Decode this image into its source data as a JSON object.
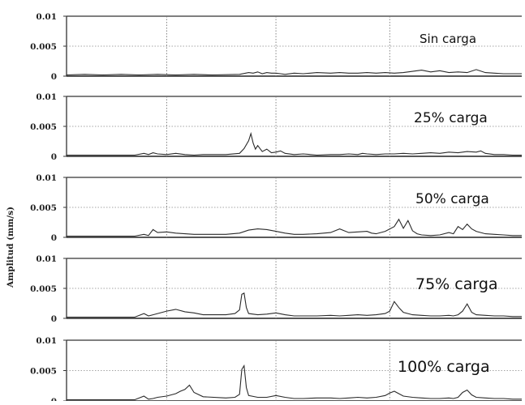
{
  "chart_data": {
    "type": "line",
    "ylabel": "Amplitud (mm/s)",
    "xlabel": "",
    "ylim": [
      0,
      0.01
    ],
    "yticks": [
      "0.01",
      "0.005",
      "0"
    ],
    "grid": true,
    "shared_x_domain": [
      0,
      100
    ],
    "vertical_gridlines_x": [
      22,
      46,
      71
    ],
    "panels": [
      {
        "label": "Sin carga",
        "series": {
          "x": [
            0,
            4,
            8,
            12,
            16,
            20,
            24,
            28,
            32,
            38,
            40,
            41,
            42,
            43,
            44,
            45,
            46,
            47,
            48,
            50,
            52,
            55,
            58,
            60,
            62,
            64,
            66,
            68,
            70,
            72,
            74,
            76,
            78,
            80,
            82,
            84,
            86,
            88,
            90,
            92,
            94,
            96,
            98,
            100
          ],
          "y": [
            0.0002,
            0.0003,
            0.0002,
            0.0003,
            0.0002,
            0.0003,
            0.0002,
            0.0003,
            0.0002,
            0.0003,
            0.0006,
            0.0005,
            0.0007,
            0.0004,
            0.0006,
            0.0005,
            0.0005,
            0.0004,
            0.0003,
            0.0005,
            0.0004,
            0.0006,
            0.0005,
            0.0006,
            0.0005,
            0.0005,
            0.0006,
            0.0005,
            0.0006,
            0.0005,
            0.0006,
            0.0008,
            0.001,
            0.0007,
            0.0009,
            0.0006,
            0.0007,
            0.0006,
            0.0011,
            0.0006,
            0.0005,
            0.0004,
            0.0004,
            0.0004
          ]
        }
      },
      {
        "label": "25% carga",
        "series": {
          "x": [
            0,
            10,
            15,
            17,
            18,
            19,
            20,
            22,
            24,
            26,
            28,
            30,
            35,
            38,
            39,
            40,
            40.5,
            41,
            41.5,
            42,
            43,
            44,
            45,
            46,
            47,
            48,
            50,
            52,
            55,
            58,
            60,
            62,
            64,
            65,
            66,
            68,
            70,
            72,
            74,
            76,
            78,
            80,
            82,
            84,
            86,
            88,
            90,
            91,
            92,
            94,
            96,
            98,
            100
          ],
          "y": [
            0.0002,
            0.0002,
            0.0002,
            0.0005,
            0.0003,
            0.0006,
            0.0004,
            0.0003,
            0.0005,
            0.0003,
            0.0002,
            0.0003,
            0.0003,
            0.0005,
            0.0013,
            0.0026,
            0.0038,
            0.0022,
            0.0012,
            0.0018,
            0.0008,
            0.0012,
            0.0006,
            0.0007,
            0.0009,
            0.0005,
            0.0003,
            0.0004,
            0.0002,
            0.0003,
            0.0003,
            0.0004,
            0.0003,
            0.0005,
            0.0004,
            0.0003,
            0.0004,
            0.0004,
            0.0005,
            0.0004,
            0.0005,
            0.0006,
            0.0005,
            0.0007,
            0.0006,
            0.0008,
            0.0007,
            0.0009,
            0.0005,
            0.0003,
            0.0003,
            0.0002,
            0.0002
          ]
        }
      },
      {
        "label": "50% carga",
        "series": {
          "x": [
            0,
            10,
            15,
            17,
            18,
            19,
            20,
            22,
            24,
            26,
            28,
            30,
            35,
            38,
            40,
            42,
            44,
            46,
            48,
            50,
            52,
            55,
            58,
            60,
            62,
            64,
            66,
            67,
            68,
            69,
            70,
            72,
            73,
            74,
            75,
            76,
            77,
            78,
            80,
            82,
            84,
            85,
            86,
            87,
            88,
            89,
            90,
            92,
            94,
            96,
            98,
            100
          ],
          "y": [
            0.0002,
            0.0002,
            0.0002,
            0.0005,
            0.0003,
            0.0013,
            0.0008,
            0.0009,
            0.0007,
            0.0006,
            0.0005,
            0.0005,
            0.0005,
            0.0007,
            0.0012,
            0.0014,
            0.0013,
            0.001,
            0.0007,
            0.0005,
            0.0005,
            0.0006,
            0.0008,
            0.0014,
            0.0008,
            0.0009,
            0.001,
            0.0007,
            0.0006,
            0.0008,
            0.001,
            0.0018,
            0.003,
            0.0015,
            0.0028,
            0.0011,
            0.0006,
            0.0004,
            0.0003,
            0.0004,
            0.0008,
            0.0006,
            0.0018,
            0.0013,
            0.0022,
            0.0014,
            0.001,
            0.0006,
            0.0005,
            0.0004,
            0.0003,
            0.0003
          ]
        }
      },
      {
        "label": "75% carga",
        "series": {
          "x": [
            0,
            10,
            15,
            17,
            18,
            19,
            20,
            22,
            24,
            26,
            28,
            30,
            35,
            37,
            38,
            38.5,
            39,
            39.5,
            40,
            42,
            44,
            46,
            48,
            50,
            52,
            55,
            58,
            60,
            62,
            64,
            66,
            68,
            70,
            71,
            72,
            73,
            74,
            76,
            78,
            80,
            82,
            84,
            85,
            86,
            87,
            88,
            89,
            90,
            92,
            94,
            96,
            98,
            100
          ],
          "y": [
            0.0002,
            0.0002,
            0.0002,
            0.0008,
            0.0004,
            0.0006,
            0.0008,
            0.0012,
            0.0015,
            0.0011,
            0.0009,
            0.0006,
            0.0006,
            0.0008,
            0.0014,
            0.004,
            0.0042,
            0.0018,
            0.0008,
            0.0006,
            0.0007,
            0.0009,
            0.0006,
            0.0004,
            0.0004,
            0.0004,
            0.0005,
            0.0004,
            0.0005,
            0.0006,
            0.0005,
            0.0006,
            0.0008,
            0.0012,
            0.0028,
            0.0018,
            0.001,
            0.0006,
            0.0005,
            0.0004,
            0.0004,
            0.0005,
            0.0004,
            0.0006,
            0.0012,
            0.0024,
            0.001,
            0.0006,
            0.0005,
            0.0004,
            0.0004,
            0.0003,
            0.0003
          ]
        }
      },
      {
        "label": "100% carga",
        "series": {
          "x": [
            0,
            10,
            15,
            17,
            18,
            19,
            20,
            22,
            24,
            25,
            26,
            27,
            28,
            30,
            35,
            37,
            38,
            38.5,
            39,
            39.5,
            40,
            42,
            44,
            46,
            48,
            50,
            52,
            55,
            58,
            60,
            62,
            64,
            66,
            68,
            70,
            71,
            72,
            73,
            74,
            76,
            78,
            80,
            82,
            84,
            85,
            86,
            87,
            88,
            89,
            90,
            92,
            94,
            96,
            98,
            100
          ],
          "y": [
            0.0002,
            0.0002,
            0.0002,
            0.0008,
            0.0003,
            0.0004,
            0.0006,
            0.0008,
            0.0012,
            0.0016,
            0.0019,
            0.0026,
            0.0014,
            0.0007,
            0.0005,
            0.0006,
            0.0011,
            0.0052,
            0.0058,
            0.0022,
            0.0009,
            0.0006,
            0.0006,
            0.0009,
            0.0006,
            0.0004,
            0.0004,
            0.0005,
            0.0005,
            0.0004,
            0.0005,
            0.0006,
            0.0005,
            0.0006,
            0.0009,
            0.0013,
            0.0016,
            0.0012,
            0.0008,
            0.0006,
            0.0005,
            0.0004,
            0.0004,
            0.0005,
            0.0004,
            0.0006,
            0.0014,
            0.0018,
            0.001,
            0.0006,
            0.0005,
            0.0004,
            0.0004,
            0.0003,
            0.0003
          ]
        }
      }
    ]
  }
}
